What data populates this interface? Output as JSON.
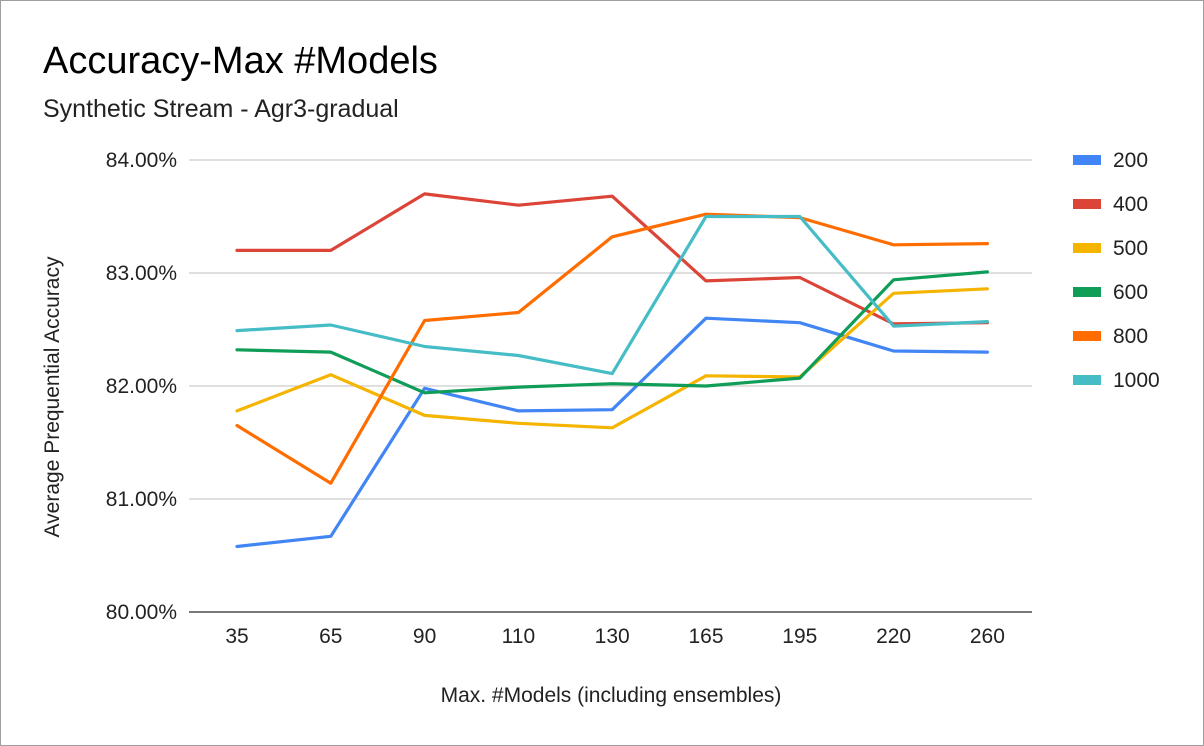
{
  "chart_data": {
    "type": "line",
    "title": "Accuracy-Max #Models",
    "subtitle": "Synthetic Stream - Agr3-gradual",
    "xlabel": "Max. #Models (including ensembles)",
    "ylabel": "Average Prequential Accuracy",
    "categories": [
      "35",
      "65",
      "90",
      "110",
      "130",
      "165",
      "195",
      "220",
      "260"
    ],
    "ylim": [
      80,
      84
    ],
    "yticks": [
      80,
      81,
      82,
      83,
      84
    ],
    "ytick_labels": [
      "80.00%",
      "81.00%",
      "82.00%",
      "83.00%",
      "84.00%"
    ],
    "grid": true,
    "legend_position": "right",
    "series": [
      {
        "name": "200",
        "color": "#4285f4",
        "values": [
          80.58,
          80.67,
          81.98,
          81.78,
          81.79,
          82.6,
          82.56,
          82.31,
          82.3
        ]
      },
      {
        "name": "400",
        "color": "#db4437",
        "values": [
          83.2,
          83.2,
          83.7,
          83.6,
          83.68,
          82.93,
          82.96,
          82.55,
          82.56
        ]
      },
      {
        "name": "500",
        "color": "#f4b400",
        "values": [
          81.78,
          82.1,
          81.74,
          81.67,
          81.63,
          82.09,
          82.08,
          82.82,
          82.86
        ]
      },
      {
        "name": "600",
        "color": "#0f9d58",
        "values": [
          82.32,
          82.3,
          81.94,
          81.99,
          82.02,
          82.0,
          82.07,
          82.94,
          83.01
        ]
      },
      {
        "name": "800",
        "color": "#ff6d01",
        "values": [
          81.65,
          81.14,
          82.58,
          82.65,
          83.32,
          83.52,
          83.49,
          83.25,
          83.26
        ]
      },
      {
        "name": "1000",
        "color": "#46bdc6",
        "values": [
          82.49,
          82.54,
          82.35,
          82.27,
          82.11,
          83.5,
          83.5,
          82.53,
          82.57
        ]
      }
    ]
  }
}
